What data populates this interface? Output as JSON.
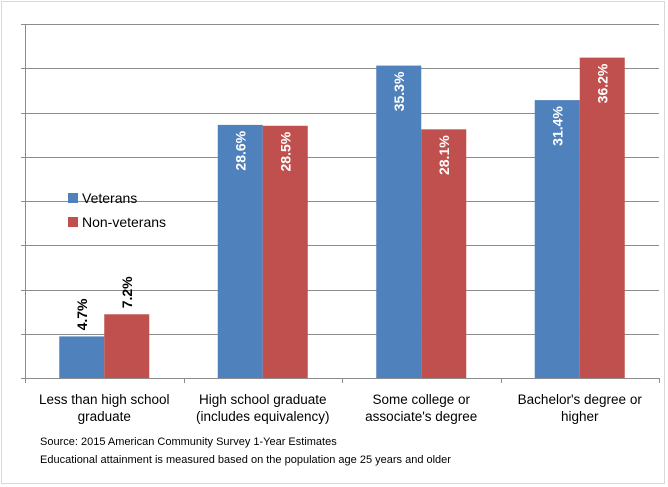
{
  "chart_data": {
    "type": "bar",
    "categories": [
      "Less than high school graduate",
      "High school graduate (includes equivalency)",
      "Some college or associate's degree",
      "Bachelor's degree or higher"
    ],
    "category_lines": [
      [
        "Less than high school",
        "graduate"
      ],
      [
        "High school graduate",
        "(includes equivalency)"
      ],
      [
        "Some college or",
        "associate's degree"
      ],
      [
        "Bachelor's degree or",
        "higher"
      ]
    ],
    "series": [
      {
        "name": "Veterans",
        "color": "#4f81bd",
        "values": [
          4.7,
          28.6,
          35.3,
          31.4
        ],
        "labels": [
          "4.7%",
          "28.6%",
          "35.3%",
          "31.4%"
        ]
      },
      {
        "name": "Non-veterans",
        "color": "#c0504d",
        "values": [
          7.2,
          28.5,
          28.1,
          36.2
        ],
        "labels": [
          "7.2%",
          "28.5%",
          "28.1%",
          "36.2%"
        ]
      }
    ],
    "ylim": [
      0,
      40
    ],
    "y_tick_step": 5,
    "grid": true,
    "legend_position": "left-middle",
    "title": "",
    "xlabel": "",
    "ylabel": ""
  },
  "footer": {
    "source": "Source: 2015 American Community Survey 1-Year Estimates",
    "note": "Educational attainment is measured based on the population age 25 years and older"
  }
}
